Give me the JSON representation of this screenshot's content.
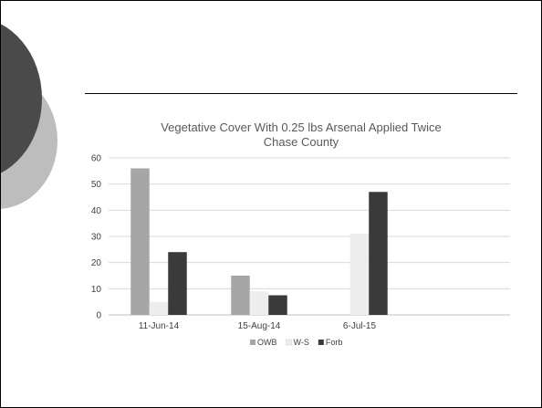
{
  "chart_data": {
    "type": "bar",
    "title": [
      "Vegetative  Cover With 0.25 lbs Arsenal Applied Twice",
      "Chase County"
    ],
    "xlabel": "",
    "ylabel": "",
    "categories": [
      "11-Jun-14",
      "15-Aug-14",
      "6-Jul-15"
    ],
    "series": [
      {
        "name": "OWB",
        "values": [
          56,
          15,
          0
        ],
        "color": "#a6a6a6"
      },
      {
        "name": "W-S",
        "values": [
          5,
          9,
          31
        ],
        "color": "#ededed"
      },
      {
        "name": "Forb",
        "values": [
          24,
          7.5,
          47
        ],
        "color": "#3a3a3a"
      }
    ],
    "ylim": [
      0,
      60
    ],
    "yticks": [
      0,
      10,
      20,
      30,
      40,
      50,
      60
    ],
    "grid": true,
    "legend_position": "bottom"
  }
}
